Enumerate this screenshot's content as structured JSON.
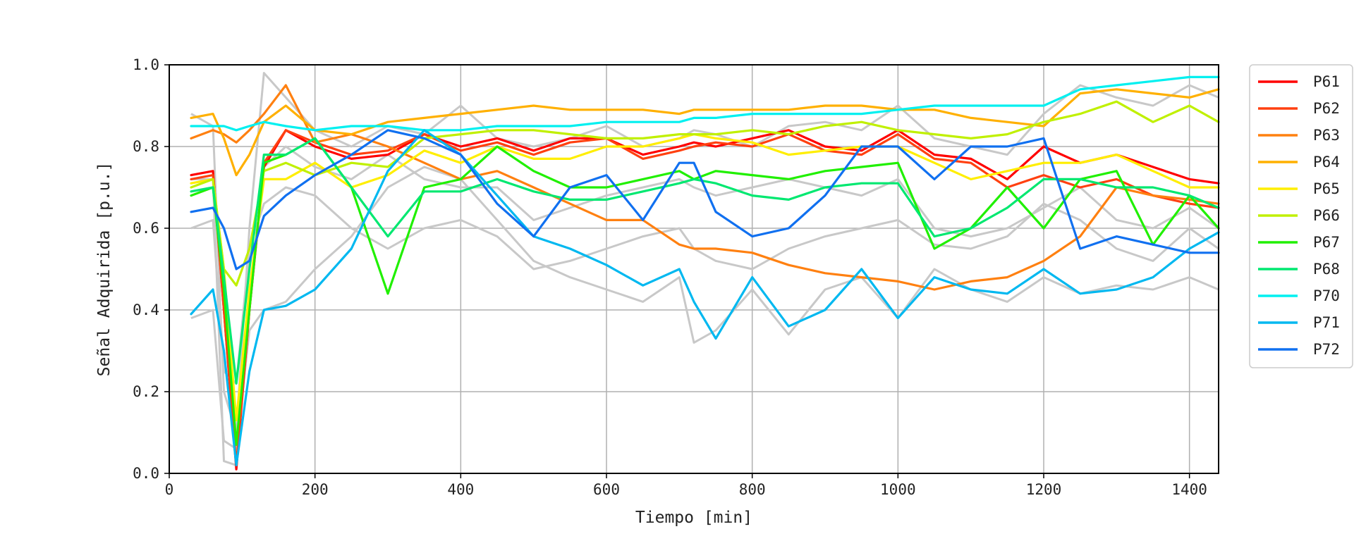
{
  "chart_data": {
    "type": "line",
    "title": "",
    "xlabel": "Tiempo [min]",
    "ylabel": "Señal Adquirida [p.u.]",
    "xlim": [
      0,
      1440
    ],
    "ylim": [
      0.0,
      1.0
    ],
    "xticks": [
      "0",
      "200",
      "400",
      "600",
      "800",
      "1000",
      "1200",
      "1400"
    ],
    "yticks": [
      "0.0",
      "0.2",
      "0.4",
      "0.6",
      "0.8",
      "1.0"
    ],
    "grid": true,
    "legend_position": "outside-right-top",
    "background_traces": {
      "description_color": "#c8c8c8",
      "x": [
        30,
        60,
        75,
        92,
        110,
        130,
        160,
        200,
        250,
        300,
        350,
        400,
        450,
        500,
        550,
        600,
        650,
        700,
        720,
        750,
        800,
        850,
        900,
        950,
        1000,
        1050,
        1100,
        1150,
        1200,
        1250,
        1300,
        1350,
        1400,
        1440
      ],
      "series": [
        {
          "values": [
            0.88,
            0.85,
            0.2,
            0.1,
            0.6,
            0.98,
            0.92,
            0.84,
            0.8,
            0.85,
            0.83,
            0.9,
            0.82,
            0.8,
            0.82,
            0.85,
            0.8,
            0.82,
            0.84,
            0.83,
            0.8,
            0.85,
            0.86,
            0.84,
            0.9,
            0.82,
            0.8,
            0.78,
            0.88,
            0.95,
            0.92,
            0.9,
            0.95,
            0.92
          ]
        },
        {
          "values": [
            0.72,
            0.72,
            0.03,
            0.02,
            0.4,
            0.75,
            0.8,
            0.75,
            0.72,
            0.78,
            0.72,
            0.7,
            0.7,
            0.62,
            0.65,
            0.68,
            0.7,
            0.72,
            0.7,
            0.68,
            0.7,
            0.72,
            0.7,
            0.68,
            0.72,
            0.6,
            0.58,
            0.6,
            0.65,
            0.7,
            0.62,
            0.6,
            0.65,
            0.6
          ]
        },
        {
          "values": [
            0.38,
            0.4,
            0.08,
            0.06,
            0.35,
            0.4,
            0.42,
            0.5,
            0.58,
            0.7,
            0.75,
            0.72,
            0.62,
            0.52,
            0.48,
            0.45,
            0.42,
            0.48,
            0.32,
            0.35,
            0.45,
            0.34,
            0.45,
            0.48,
            0.38,
            0.5,
            0.45,
            0.42,
            0.48,
            0.44,
            0.46,
            0.45,
            0.48,
            0.45
          ]
        },
        {
          "values": [
            0.6,
            0.62,
            0.25,
            0.22,
            0.55,
            0.66,
            0.7,
            0.68,
            0.6,
            0.55,
            0.6,
            0.62,
            0.58,
            0.5,
            0.52,
            0.55,
            0.58,
            0.6,
            0.55,
            0.52,
            0.5,
            0.55,
            0.58,
            0.6,
            0.62,
            0.56,
            0.55,
            0.58,
            0.66,
            0.62,
            0.55,
            0.52,
            0.6,
            0.55
          ]
        }
      ]
    },
    "x": [
      30,
      60,
      75,
      92,
      110,
      130,
      160,
      200,
      250,
      300,
      350,
      400,
      450,
      500,
      550,
      600,
      650,
      700,
      720,
      750,
      800,
      850,
      900,
      950,
      1000,
      1050,
      1100,
      1150,
      1200,
      1250,
      1300,
      1350,
      1400,
      1440
    ],
    "series": [
      {
        "name": "P61",
        "color": "#ff0000",
        "values": [
          0.73,
          0.74,
          0.4,
          0.01,
          0.4,
          0.75,
          0.84,
          0.8,
          0.77,
          0.78,
          0.83,
          0.8,
          0.82,
          0.79,
          0.82,
          0.82,
          0.78,
          0.8,
          0.81,
          0.8,
          0.82,
          0.84,
          0.8,
          0.79,
          0.84,
          0.78,
          0.77,
          0.72,
          0.8,
          0.76,
          0.78,
          0.75,
          0.72,
          0.71
        ]
      },
      {
        "name": "P62",
        "color": "#ff4010",
        "values": [
          0.72,
          0.73,
          0.4,
          0.02,
          0.4,
          0.76,
          0.84,
          0.81,
          0.78,
          0.79,
          0.83,
          0.79,
          0.81,
          0.78,
          0.81,
          0.82,
          0.77,
          0.79,
          0.8,
          0.81,
          0.8,
          0.83,
          0.79,
          0.78,
          0.83,
          0.77,
          0.76,
          0.7,
          0.73,
          0.7,
          0.72,
          0.68,
          0.66,
          0.65
        ]
      },
      {
        "name": "P63",
        "color": "#ff8010",
        "values": [
          0.82,
          0.84,
          0.83,
          0.81,
          0.84,
          0.88,
          0.95,
          0.81,
          0.83,
          0.8,
          0.76,
          0.72,
          0.74,
          0.7,
          0.66,
          0.62,
          0.62,
          0.56,
          0.55,
          0.55,
          0.54,
          0.51,
          0.49,
          0.48,
          0.47,
          0.45,
          0.47,
          0.48,
          0.52,
          0.58,
          0.7,
          0.68,
          0.67,
          0.66
        ]
      },
      {
        "name": "P64",
        "color": "#ffb000",
        "values": [
          0.87,
          0.88,
          0.82,
          0.73,
          0.78,
          0.86,
          0.9,
          0.84,
          0.83,
          0.86,
          0.87,
          0.88,
          0.89,
          0.9,
          0.89,
          0.89,
          0.89,
          0.88,
          0.89,
          0.89,
          0.89,
          0.89,
          0.9,
          0.9,
          0.89,
          0.89,
          0.87,
          0.86,
          0.85,
          0.93,
          0.94,
          0.93,
          0.92,
          0.94
        ]
      },
      {
        "name": "P65",
        "color": "#ffee00",
        "values": [
          0.71,
          0.72,
          0.5,
          0.13,
          0.45,
          0.72,
          0.72,
          0.76,
          0.7,
          0.73,
          0.79,
          0.76,
          0.8,
          0.77,
          0.77,
          0.8,
          0.8,
          0.82,
          0.83,
          0.82,
          0.81,
          0.78,
          0.79,
          0.8,
          0.8,
          0.76,
          0.72,
          0.74,
          0.76,
          0.76,
          0.78,
          0.74,
          0.7,
          0.7
        ]
      },
      {
        "name": "P66",
        "color": "#c0f000",
        "values": [
          0.7,
          0.72,
          0.5,
          0.46,
          0.55,
          0.74,
          0.76,
          0.73,
          0.76,
          0.75,
          0.82,
          0.83,
          0.84,
          0.84,
          0.83,
          0.82,
          0.82,
          0.83,
          0.83,
          0.83,
          0.84,
          0.83,
          0.85,
          0.86,
          0.84,
          0.83,
          0.82,
          0.83,
          0.86,
          0.88,
          0.91,
          0.86,
          0.9,
          0.86
        ]
      },
      {
        "name": "P67",
        "color": "#20f000",
        "values": [
          0.68,
          0.7,
          0.45,
          0.07,
          0.4,
          0.76,
          0.78,
          0.82,
          0.7,
          0.44,
          0.7,
          0.72,
          0.8,
          0.74,
          0.7,
          0.7,
          0.72,
          0.74,
          0.72,
          0.74,
          0.73,
          0.72,
          0.74,
          0.75,
          0.76,
          0.55,
          0.6,
          0.7,
          0.6,
          0.72,
          0.74,
          0.56,
          0.68,
          0.6
        ]
      },
      {
        "name": "P68",
        "color": "#00e870",
        "values": [
          0.69,
          0.7,
          0.48,
          0.22,
          0.5,
          0.78,
          0.78,
          0.82,
          0.7,
          0.58,
          0.69,
          0.69,
          0.72,
          0.69,
          0.67,
          0.67,
          0.69,
          0.71,
          0.72,
          0.71,
          0.68,
          0.67,
          0.7,
          0.71,
          0.71,
          0.58,
          0.6,
          0.65,
          0.72,
          0.72,
          0.7,
          0.7,
          0.68,
          0.65
        ]
      },
      {
        "name": "P70",
        "color": "#00f0f0",
        "values": [
          0.85,
          0.85,
          0.85,
          0.84,
          0.85,
          0.86,
          0.85,
          0.84,
          0.85,
          0.85,
          0.84,
          0.84,
          0.85,
          0.85,
          0.85,
          0.86,
          0.86,
          0.86,
          0.87,
          0.87,
          0.88,
          0.88,
          0.88,
          0.88,
          0.89,
          0.9,
          0.9,
          0.9,
          0.9,
          0.94,
          0.95,
          0.96,
          0.97,
          0.97
        ]
      },
      {
        "name": "P71",
        "color": "#00b8f0",
        "values": [
          0.39,
          0.45,
          0.3,
          0.02,
          0.25,
          0.4,
          0.41,
          0.45,
          0.55,
          0.74,
          0.84,
          0.78,
          0.68,
          0.58,
          0.55,
          0.51,
          0.46,
          0.5,
          0.42,
          0.33,
          0.48,
          0.36,
          0.4,
          0.5,
          0.38,
          0.48,
          0.45,
          0.44,
          0.5,
          0.44,
          0.45,
          0.48,
          0.55,
          0.59
        ]
      },
      {
        "name": "P72",
        "color": "#1070f0",
        "values": [
          0.64,
          0.65,
          0.6,
          0.5,
          0.52,
          0.63,
          0.68,
          0.73,
          0.78,
          0.84,
          0.82,
          0.78,
          0.66,
          0.58,
          0.7,
          0.73,
          0.62,
          0.76,
          0.76,
          0.64,
          0.58,
          0.6,
          0.68,
          0.8,
          0.8,
          0.72,
          0.8,
          0.8,
          0.82,
          0.55,
          0.58,
          0.56,
          0.54,
          0.54
        ]
      }
    ]
  }
}
